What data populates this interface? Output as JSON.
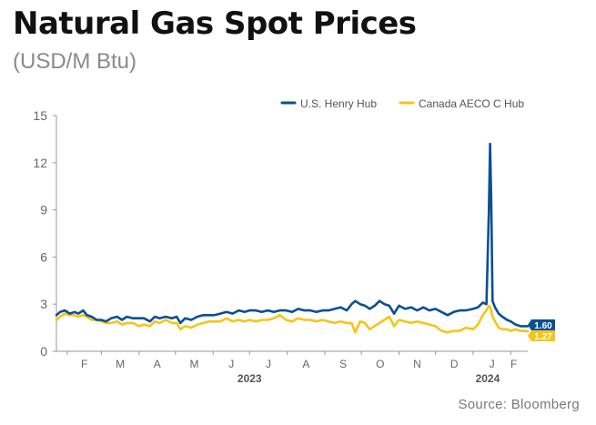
{
  "title": "Natural Gas Spot Prices",
  "subtitle": "(USD/M Btu)",
  "source": "Source: Bloomberg",
  "colors": {
    "henry": "#0b4f94",
    "aeco": "#f5c518",
    "axis": "#999999",
    "tick_text": "#666666"
  },
  "chart_data": {
    "type": "line",
    "title": "Natural Gas Spot Prices",
    "subtitle": "(USD/M Btu)",
    "xlabel": "",
    "ylabel": "",
    "ylim": [
      0,
      15
    ],
    "xlim": [
      "2023-01-23",
      "2024-02-15"
    ],
    "yticks": [
      0,
      3,
      6,
      9,
      12,
      15
    ],
    "grid": false,
    "legend": "top-right",
    "month_ticks": [
      {
        "label": "F",
        "date": "2023-02-01"
      },
      {
        "label": "M",
        "date": "2023-03-01"
      },
      {
        "label": "A",
        "date": "2023-04-01"
      },
      {
        "label": "M",
        "date": "2023-05-01"
      },
      {
        "label": "J",
        "date": "2023-06-01"
      },
      {
        "label": "J",
        "date": "2023-07-01"
      },
      {
        "label": "A",
        "date": "2023-08-01"
      },
      {
        "label": "S",
        "date": "2023-09-01"
      },
      {
        "label": "O",
        "date": "2023-10-01"
      },
      {
        "label": "N",
        "date": "2023-11-01"
      },
      {
        "label": "D",
        "date": "2023-12-01"
      },
      {
        "label": "J",
        "date": "2024-01-01"
      },
      {
        "label": "F",
        "date": "2024-02-01"
      }
    ],
    "year_labels": [
      {
        "label": "2023",
        "date": "2023-07-01"
      },
      {
        "label": "2024",
        "date": "2024-01-13"
      }
    ],
    "series": [
      {
        "name": "U.S. Henry Hub",
        "color": "#0b4f94",
        "end_label": "1.60",
        "points": [
          [
            "2023-01-23",
            2.3
          ],
          [
            "2023-01-26",
            2.5
          ],
          [
            "2023-01-30",
            2.6
          ],
          [
            "2023-02-03",
            2.4
          ],
          [
            "2023-02-07",
            2.5
          ],
          [
            "2023-02-10",
            2.4
          ],
          [
            "2023-02-14",
            2.6
          ],
          [
            "2023-02-17",
            2.3
          ],
          [
            "2023-02-21",
            2.2
          ],
          [
            "2023-02-25",
            2.0
          ],
          [
            "2023-03-01",
            2.0
          ],
          [
            "2023-03-05",
            1.9
          ],
          [
            "2023-03-09",
            2.1
          ],
          [
            "2023-03-14",
            2.2
          ],
          [
            "2023-03-18",
            2.0
          ],
          [
            "2023-03-22",
            2.2
          ],
          [
            "2023-03-27",
            2.1
          ],
          [
            "2023-04-01",
            2.1
          ],
          [
            "2023-04-05",
            2.1
          ],
          [
            "2023-04-10",
            1.9
          ],
          [
            "2023-04-14",
            2.2
          ],
          [
            "2023-04-18",
            2.1
          ],
          [
            "2023-04-23",
            2.2
          ],
          [
            "2023-04-28",
            2.1
          ],
          [
            "2023-05-02",
            2.2
          ],
          [
            "2023-05-05",
            1.8
          ],
          [
            "2023-05-09",
            2.1
          ],
          [
            "2023-05-14",
            2.0
          ],
          [
            "2023-05-19",
            2.2
          ],
          [
            "2023-05-24",
            2.3
          ],
          [
            "2023-05-29",
            2.3
          ],
          [
            "2023-06-02",
            2.3
          ],
          [
            "2023-06-07",
            2.4
          ],
          [
            "2023-06-12",
            2.5
          ],
          [
            "2023-06-17",
            2.4
          ],
          [
            "2023-06-22",
            2.6
          ],
          [
            "2023-06-27",
            2.5
          ],
          [
            "2023-07-01",
            2.6
          ],
          [
            "2023-07-06",
            2.6
          ],
          [
            "2023-07-11",
            2.5
          ],
          [
            "2023-07-16",
            2.6
          ],
          [
            "2023-07-21",
            2.5
          ],
          [
            "2023-07-26",
            2.6
          ],
          [
            "2023-07-31",
            2.6
          ],
          [
            "2023-08-05",
            2.5
          ],
          [
            "2023-08-10",
            2.7
          ],
          [
            "2023-08-15",
            2.6
          ],
          [
            "2023-08-20",
            2.6
          ],
          [
            "2023-08-25",
            2.5
          ],
          [
            "2023-08-30",
            2.6
          ],
          [
            "2023-09-04",
            2.6
          ],
          [
            "2023-09-09",
            2.7
          ],
          [
            "2023-09-14",
            2.8
          ],
          [
            "2023-09-19",
            2.6
          ],
          [
            "2023-09-23",
            3.0
          ],
          [
            "2023-09-26",
            3.2
          ],
          [
            "2023-09-30",
            3.0
          ],
          [
            "2023-10-04",
            2.9
          ],
          [
            "2023-10-08",
            2.7
          ],
          [
            "2023-10-12",
            2.9
          ],
          [
            "2023-10-16",
            3.2
          ],
          [
            "2023-10-20",
            3.0
          ],
          [
            "2023-10-24",
            2.9
          ],
          [
            "2023-10-28",
            2.4
          ],
          [
            "2023-11-01",
            2.9
          ],
          [
            "2023-11-06",
            2.7
          ],
          [
            "2023-11-11",
            2.8
          ],
          [
            "2023-11-16",
            2.6
          ],
          [
            "2023-11-21",
            2.8
          ],
          [
            "2023-11-26",
            2.6
          ],
          [
            "2023-12-01",
            2.7
          ],
          [
            "2023-12-06",
            2.5
          ],
          [
            "2023-12-11",
            2.3
          ],
          [
            "2023-12-16",
            2.5
          ],
          [
            "2023-12-21",
            2.6
          ],
          [
            "2023-12-26",
            2.6
          ],
          [
            "2024-01-01",
            2.7
          ],
          [
            "2024-01-05",
            2.8
          ],
          [
            "2024-01-09",
            3.1
          ],
          [
            "2024-01-12",
            3.0
          ],
          [
            "2024-01-14",
            9.0
          ],
          [
            "2024-01-15",
            13.2
          ],
          [
            "2024-01-16",
            9.5
          ],
          [
            "2024-01-17",
            3.2
          ],
          [
            "2024-01-19",
            2.8
          ],
          [
            "2024-01-22",
            2.4
          ],
          [
            "2024-01-25",
            2.2
          ],
          [
            "2024-01-29",
            2.0
          ],
          [
            "2024-02-01",
            1.9
          ],
          [
            "2024-02-05",
            1.7
          ],
          [
            "2024-02-09",
            1.6
          ],
          [
            "2024-02-12",
            1.6
          ],
          [
            "2024-02-15",
            1.6
          ]
        ]
      },
      {
        "name": "Canada AECO C Hub",
        "color": "#f5c518",
        "end_label": "1.27",
        "points": [
          [
            "2023-01-23",
            2.0
          ],
          [
            "2023-01-26",
            2.2
          ],
          [
            "2023-01-30",
            2.4
          ],
          [
            "2023-02-03",
            2.3
          ],
          [
            "2023-02-07",
            2.3
          ],
          [
            "2023-02-10",
            2.2
          ],
          [
            "2023-02-14",
            2.3
          ],
          [
            "2023-02-17",
            2.2
          ],
          [
            "2023-02-21",
            2.0
          ],
          [
            "2023-02-25",
            2.0
          ],
          [
            "2023-03-01",
            1.9
          ],
          [
            "2023-03-05",
            1.8
          ],
          [
            "2023-03-09",
            1.8
          ],
          [
            "2023-03-14",
            1.9
          ],
          [
            "2023-03-18",
            1.7
          ],
          [
            "2023-03-22",
            1.8
          ],
          [
            "2023-03-27",
            1.8
          ],
          [
            "2023-04-01",
            1.6
          ],
          [
            "2023-04-05",
            1.7
          ],
          [
            "2023-04-10",
            1.6
          ],
          [
            "2023-04-14",
            1.9
          ],
          [
            "2023-04-18",
            1.8
          ],
          [
            "2023-04-23",
            2.0
          ],
          [
            "2023-04-28",
            1.8
          ],
          [
            "2023-05-02",
            1.8
          ],
          [
            "2023-05-05",
            1.4
          ],
          [
            "2023-05-09",
            1.6
          ],
          [
            "2023-05-14",
            1.5
          ],
          [
            "2023-05-19",
            1.7
          ],
          [
            "2023-05-24",
            1.8
          ],
          [
            "2023-05-29",
            1.9
          ],
          [
            "2023-06-02",
            1.9
          ],
          [
            "2023-06-07",
            1.9
          ],
          [
            "2023-06-12",
            2.1
          ],
          [
            "2023-06-17",
            1.9
          ],
          [
            "2023-06-22",
            2.0
          ],
          [
            "2023-06-27",
            1.9
          ],
          [
            "2023-07-01",
            2.0
          ],
          [
            "2023-07-06",
            1.9
          ],
          [
            "2023-07-11",
            2.0
          ],
          [
            "2023-07-16",
            2.0
          ],
          [
            "2023-07-21",
            2.1
          ],
          [
            "2023-07-26",
            2.3
          ],
          [
            "2023-07-31",
            2.0
          ],
          [
            "2023-08-05",
            1.9
          ],
          [
            "2023-08-10",
            2.1
          ],
          [
            "2023-08-15",
            2.0
          ],
          [
            "2023-08-20",
            2.0
          ],
          [
            "2023-08-25",
            1.9
          ],
          [
            "2023-08-30",
            2.0
          ],
          [
            "2023-09-04",
            1.9
          ],
          [
            "2023-09-09",
            1.8
          ],
          [
            "2023-09-14",
            1.9
          ],
          [
            "2023-09-19",
            1.8
          ],
          [
            "2023-09-23",
            1.8
          ],
          [
            "2023-09-26",
            1.2
          ],
          [
            "2023-09-30",
            1.9
          ],
          [
            "2023-10-04",
            1.8
          ],
          [
            "2023-10-08",
            1.4
          ],
          [
            "2023-10-12",
            1.6
          ],
          [
            "2023-10-16",
            1.8
          ],
          [
            "2023-10-20",
            2.0
          ],
          [
            "2023-10-24",
            2.2
          ],
          [
            "2023-10-28",
            1.6
          ],
          [
            "2023-11-01",
            2.0
          ],
          [
            "2023-11-06",
            1.9
          ],
          [
            "2023-11-11",
            1.8
          ],
          [
            "2023-11-16",
            1.9
          ],
          [
            "2023-11-21",
            1.8
          ],
          [
            "2023-11-26",
            1.7
          ],
          [
            "2023-12-01",
            1.6
          ],
          [
            "2023-12-06",
            1.3
          ],
          [
            "2023-12-11",
            1.2
          ],
          [
            "2023-12-16",
            1.3
          ],
          [
            "2023-12-21",
            1.3
          ],
          [
            "2023-12-26",
            1.5
          ],
          [
            "2024-01-01",
            1.4
          ],
          [
            "2024-01-05",
            1.7
          ],
          [
            "2024-01-09",
            2.3
          ],
          [
            "2024-01-12",
            2.6
          ],
          [
            "2024-01-14",
            2.9
          ],
          [
            "2024-01-15",
            2.8
          ],
          [
            "2024-01-16",
            2.6
          ],
          [
            "2024-01-17",
            2.2
          ],
          [
            "2024-01-19",
            1.9
          ],
          [
            "2024-01-22",
            1.5
          ],
          [
            "2024-01-25",
            1.4
          ],
          [
            "2024-01-29",
            1.4
          ],
          [
            "2024-02-01",
            1.3
          ],
          [
            "2024-02-05",
            1.4
          ],
          [
            "2024-02-09",
            1.3
          ],
          [
            "2024-02-12",
            1.3
          ],
          [
            "2024-02-15",
            1.27
          ]
        ]
      }
    ]
  }
}
